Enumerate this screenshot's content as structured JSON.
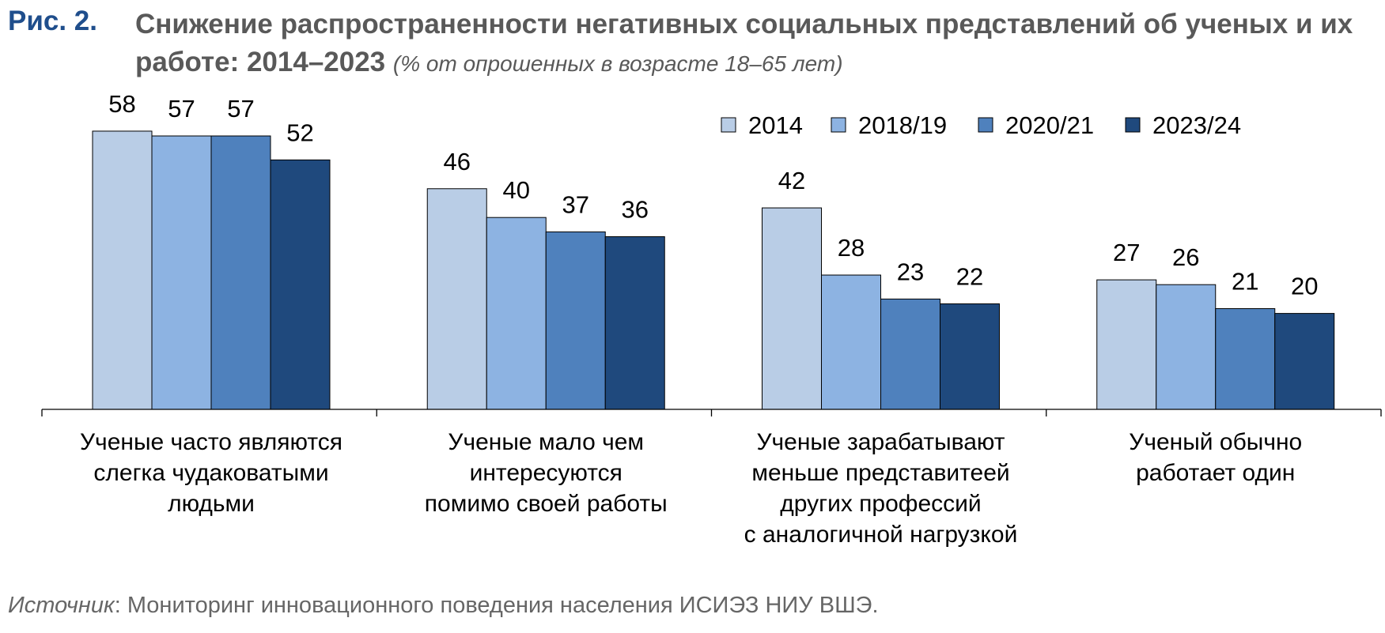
{
  "figure": {
    "label": "Рис. 2.",
    "title": "Снижение распространенности негативных социальных представлений об ученых и их работе: 2014–2023",
    "subtitle": "(% от опрошенных в возрасте 18–65 лет)"
  },
  "source": {
    "prefix": "Источник",
    "text": ": Мониторинг инновационного поведения населения ИСИЭЗ НИУ ВШЭ."
  },
  "chart_data": {
    "type": "bar",
    "title": "",
    "xlabel": "",
    "ylabel": "",
    "ylim": [
      0,
      58
    ],
    "grid": false,
    "legend_position": "top-right",
    "categories": [
      [
        "Ученые часто являются",
        "слегка чудаковатыми",
        "людьми"
      ],
      [
        "Ученые мало чем",
        "интересуются",
        "помимо своей работы"
      ],
      [
        "Ученые зарабатывают",
        "меньше представитеей",
        "других профессий",
        "с аналогичной нагрузкой"
      ],
      [
        "Ученый обычно",
        "работает один"
      ]
    ],
    "series": [
      {
        "name": "2014",
        "color": "#b9cde6",
        "values": [
          58,
          46,
          42,
          27
        ]
      },
      {
        "name": "2018/19",
        "color": "#8db3e2",
        "values": [
          57,
          40,
          28,
          26
        ]
      },
      {
        "name": "2020/21",
        "color": "#4f81bd",
        "values": [
          57,
          37,
          23,
          21
        ]
      },
      {
        "name": "2023/24",
        "color": "#1f497d",
        "values": [
          52,
          36,
          22,
          20
        ]
      }
    ]
  }
}
